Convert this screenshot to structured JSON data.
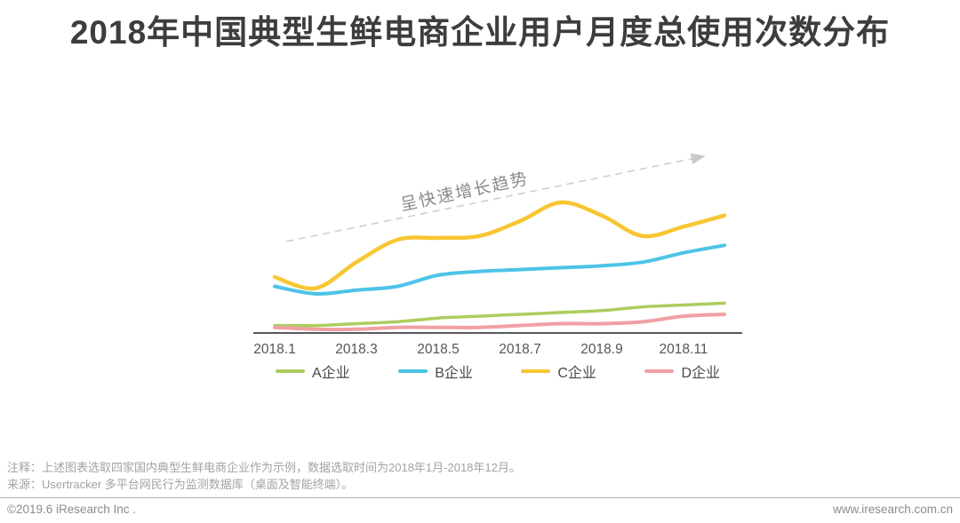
{
  "page": {
    "title": "2018年中国典型生鲜电商企业用户月度总使用次数分布",
    "note": "注释：上述图表选取四家国内典型生鲜电商企业作为示例，数据选取时间为2018年1月-2018年12月。",
    "source": "来源：Usertracker 多平台网民行为监测数据库（桌面及智能终端）。",
    "footer_left": "©2019.6 iResearch Inc .",
    "footer_right": "www.iresearch.com.cn"
  },
  "chart_data": {
    "type": "line",
    "title": "2018年中国典型生鲜电商企业用户月度总使用次数分布",
    "x": [
      "2018.1",
      "2018.2",
      "2018.3",
      "2018.4",
      "2018.5",
      "2018.6",
      "2018.7",
      "2018.8",
      "2018.9",
      "2018.10",
      "2018.11",
      "2018.12"
    ],
    "x_tick_labels": [
      "2018.1",
      "2018.3",
      "2018.5",
      "2018.7",
      "2018.9",
      "2018.11"
    ],
    "ylabel": "",
    "y_axis_note": "no numeric y-axis shown; values are relative monthly total-usage index estimated from line heights, scale 0-100",
    "ylim": [
      0,
      100
    ],
    "grid": false,
    "legend_position": "bottom",
    "series": [
      {
        "name": "A企业",
        "color": "#abcd5e",
        "values": [
          4,
          4,
          5,
          6,
          8,
          9,
          10,
          11,
          12,
          14,
          15,
          16
        ]
      },
      {
        "name": "B企业",
        "color": "#4dc3e7",
        "values": [
          25,
          21,
          23,
          25,
          31,
          33,
          34,
          35,
          36,
          38,
          43,
          47
        ]
      },
      {
        "name": "C企业",
        "color": "#f7c632",
        "values": [
          30,
          24,
          38,
          50,
          51,
          52,
          60,
          70,
          63,
          52,
          57,
          63
        ]
      },
      {
        "name": "D企业",
        "color": "#f0a0a5",
        "values": [
          3,
          2,
          2,
          3,
          3,
          3,
          4,
          5,
          5,
          6,
          9,
          10
        ]
      }
    ],
    "annotation": {
      "text": "呈快速增长趋势",
      "color": "#8a8a8a",
      "arrow": "dashed gray arrow rising left-to-right above C line"
    }
  }
}
